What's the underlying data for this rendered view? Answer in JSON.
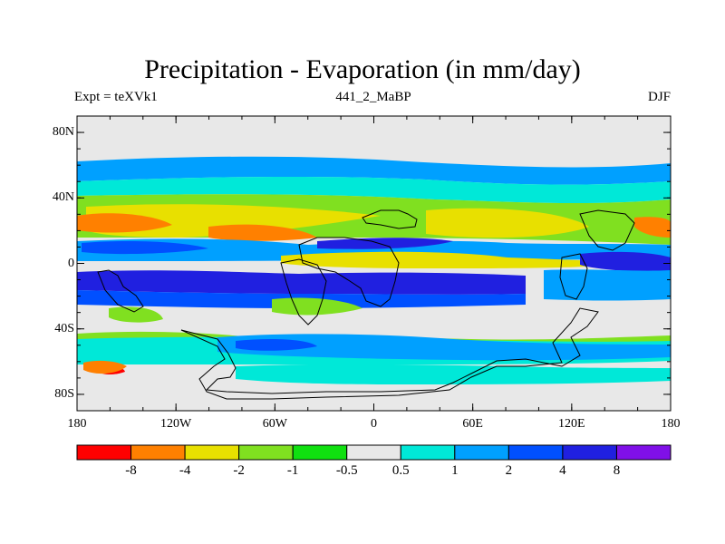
{
  "title": "Precipitation - Evaporation (in mm/day)",
  "left_label": "Expt = teXVk1",
  "center_label": "441_2_MaBP",
  "right_label": "DJF",
  "lat_ticks": [
    {
      "label": "80N",
      "lat": 80
    },
    {
      "label": "40N",
      "lat": 40
    },
    {
      "label": "0",
      "lat": 0
    },
    {
      "label": "40S",
      "lat": -40
    },
    {
      "label": "80S",
      "lat": -80
    }
  ],
  "lon_ticks": [
    {
      "label": "180",
      "lon": -180
    },
    {
      "label": "120W",
      "lon": -120
    },
    {
      "label": "60W",
      "lon": -60
    },
    {
      "label": "0",
      "lon": 0
    },
    {
      "label": "60E",
      "lon": 60
    },
    {
      "label": "120E",
      "lon": 120
    },
    {
      "label": "180",
      "lon": 180
    }
  ],
  "colorbar": {
    "colors": [
      "#ff0000",
      "#ff8000",
      "#e8e000",
      "#80e020",
      "#10e010",
      "#e8e8e8",
      "#00e8d8",
      "#00a0ff",
      "#0050ff",
      "#2020e0",
      "#8010e8"
    ],
    "labels": [
      "-8",
      "-4",
      "-2",
      "-1",
      "-0.5",
      "0.5",
      "1",
      "2",
      "4",
      "8"
    ]
  },
  "colors": {
    "background": "#e8e8e8",
    "coastline": "#000000"
  }
}
